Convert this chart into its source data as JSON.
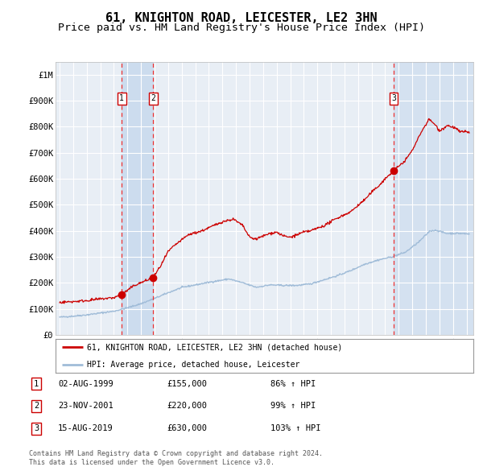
{
  "title": "61, KNIGHTON ROAD, LEICESTER, LE2 3HN",
  "subtitle": "Price paid vs. HM Land Registry's House Price Index (HPI)",
  "title_fontsize": 11,
  "subtitle_fontsize": 9.5,
  "background_color": "#ffffff",
  "plot_bg_color": "#e8eef5",
  "grid_color": "#ffffff",
  "hpi_color": "#a0bcd8",
  "price_color": "#cc0000",
  "sale_marker_color": "#cc0000",
  "highlight_color": "#ccdcee",
  "dashed_line_color": "#ee3333",
  "transactions": [
    {
      "id": 1,
      "date_num": 1999.58,
      "price": 155000,
      "label": "1"
    },
    {
      "id": 2,
      "date_num": 2001.9,
      "price": 220000,
      "label": "2"
    },
    {
      "id": 3,
      "date_num": 2019.62,
      "price": 630000,
      "label": "3"
    }
  ],
  "table_rows": [
    {
      "id": "1",
      "date": "02-AUG-1999",
      "price": "£155,000",
      "pct": "86% ↑ HPI"
    },
    {
      "id": "2",
      "date": "23-NOV-2001",
      "price": "£220,000",
      "pct": "99% ↑ HPI"
    },
    {
      "id": "3",
      "date": "15-AUG-2019",
      "price": "£630,000",
      "pct": "103% ↑ HPI"
    }
  ],
  "legend_line1": "61, KNIGHTON ROAD, LEICESTER, LE2 3HN (detached house)",
  "legend_line2": "HPI: Average price, detached house, Leicester",
  "footer1": "Contains HM Land Registry data © Crown copyright and database right 2024.",
  "footer2": "This data is licensed under the Open Government Licence v3.0.",
  "ylim": [
    0,
    1050000
  ],
  "yticks": [
    0,
    100000,
    200000,
    300000,
    400000,
    500000,
    600000,
    700000,
    800000,
    900000,
    1000000
  ],
  "ytick_labels": [
    "£0",
    "£100K",
    "£200K",
    "£300K",
    "£400K",
    "£500K",
    "£600K",
    "£700K",
    "£800K",
    "£900K",
    "£1M"
  ],
  "xlim_start": 1994.7,
  "xlim_end": 2025.5,
  "xticks": [
    1995,
    1996,
    1997,
    1998,
    1999,
    2000,
    2001,
    2002,
    2003,
    2004,
    2005,
    2006,
    2007,
    2008,
    2009,
    2010,
    2011,
    2012,
    2013,
    2014,
    2015,
    2016,
    2017,
    2018,
    2019,
    2020,
    2021,
    2022,
    2023,
    2024,
    2025
  ]
}
